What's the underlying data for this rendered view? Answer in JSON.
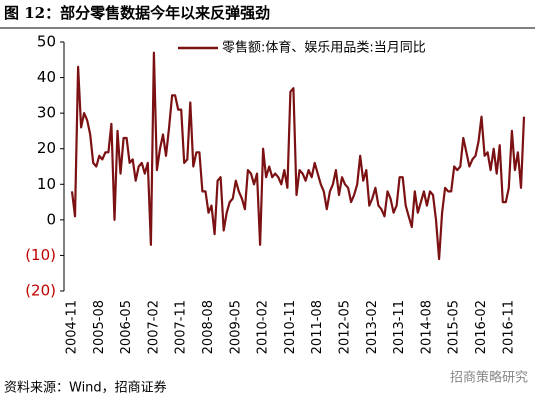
{
  "chart_data": {
    "type": "line",
    "title": "图 12：部分零售数据今年以来反弹强劲",
    "source": "资料来源：Wind，招商证券",
    "watermark": "招商策略研究",
    "categories": [
      "2004-11",
      null,
      null,
      null,
      null,
      null,
      null,
      null,
      null,
      "2005-08",
      null,
      null,
      null,
      null,
      null,
      null,
      null,
      null,
      "2006-05",
      null,
      null,
      null,
      null,
      null,
      null,
      null,
      null,
      "2007-02",
      null,
      null,
      null,
      null,
      null,
      null,
      null,
      null,
      "2007-11",
      null,
      null,
      null,
      null,
      null,
      null,
      null,
      null,
      "2008-08",
      null,
      null,
      null,
      null,
      null,
      null,
      null,
      null,
      "2009-05",
      null,
      null,
      null,
      null,
      null,
      null,
      null,
      null,
      "2010-02",
      null,
      null,
      null,
      null,
      null,
      null,
      null,
      null,
      "2010-11",
      null,
      null,
      null,
      null,
      null,
      null,
      null,
      null,
      "2011-08",
      null,
      null,
      null,
      null,
      null,
      null,
      null,
      null,
      "2012-05",
      null,
      null,
      null,
      null,
      null,
      null,
      null,
      null,
      "2013-02",
      null,
      null,
      null,
      null,
      null,
      null,
      null,
      null,
      "2013-11",
      null,
      null,
      null,
      null,
      null,
      null,
      null,
      null,
      "2014-08",
      null,
      null,
      null,
      null,
      null,
      null,
      null,
      null,
      "2015-05",
      null,
      null,
      null,
      null,
      null,
      null,
      null,
      null,
      "2016-02",
      null,
      null,
      null,
      null,
      null,
      null,
      null,
      null,
      "2016-11",
      null,
      null,
      null,
      null,
      null
    ],
    "series": [
      {
        "name": "零售额:体育、娱乐用品类:当月同比",
        "color": "#7b1113",
        "values": [
          8,
          1,
          43,
          26,
          30,
          28,
          24,
          16,
          15,
          18,
          17,
          19,
          19,
          27,
          0,
          25,
          13,
          23,
          23,
          16,
          17,
          11,
          15,
          16,
          13,
          16,
          -7,
          47,
          14,
          20,
          24,
          18,
          26,
          35,
          35,
          31,
          31,
          16,
          17,
          33,
          15,
          19,
          19,
          8,
          8,
          2,
          4,
          -4,
          11,
          12,
          -3,
          2,
          5,
          6,
          11,
          8,
          6,
          3,
          14,
          13,
          10,
          13,
          -7,
          20,
          12,
          15,
          12,
          13,
          12,
          10,
          14,
          9,
          36,
          37,
          7,
          14,
          13,
          11,
          14,
          12,
          16,
          13,
          10,
          8,
          3,
          8,
          10,
          14,
          7,
          12,
          10,
          9,
          5,
          7,
          10,
          18,
          11,
          14,
          4,
          6,
          9,
          4,
          3,
          1,
          8,
          6,
          2,
          4,
          12,
          12,
          4,
          1,
          -2,
          8,
          2,
          5,
          8,
          4,
          8,
          7,
          0,
          -11,
          2,
          9,
          8,
          8,
          15,
          14,
          15,
          23,
          19,
          15,
          17,
          18,
          22,
          29,
          18,
          19,
          14,
          20,
          13,
          21,
          5,
          5,
          9,
          25,
          14,
          19,
          9,
          29
        ]
      }
    ],
    "ylim": [
      -20,
      50
    ],
    "yticks": [
      {
        "value": -20,
        "label": "(20)"
      },
      {
        "value": -10,
        "label": "(10)"
      },
      0,
      10,
      20,
      30,
      40,
      50
    ],
    "negative_label_color": "#c00000",
    "legend": "top-right"
  }
}
